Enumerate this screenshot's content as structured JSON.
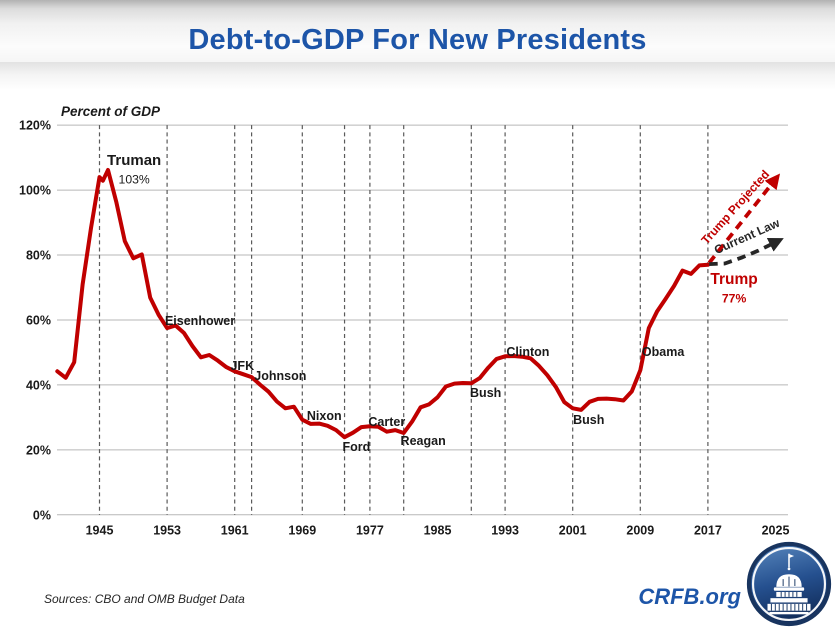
{
  "title": "Debt-to-GDP For New Presidents",
  "footer": {
    "sources": "Sources: CBO and OMB Budget Data",
    "brand": "CRFB.org"
  },
  "colors": {
    "accent_blue": "#1d55a8",
    "line_red": "#c00000",
    "projection_black": "#262626",
    "gridline": "#b7b7b7",
    "inauguration_dash": "#5a5a5a"
  },
  "chart_data": {
    "type": "line",
    "title": "Debt-to-GDP For New Presidents",
    "axis_note": "Percent of GDP",
    "xlabel": "",
    "ylabel": "Percent of GDP",
    "ylim": [
      0,
      120
    ],
    "xlim": [
      1940,
      2026.5
    ],
    "grid": "horizontal solid; vertical dashed at first-inauguration years",
    "legend_position": "none",
    "y_tick_labels": [
      "0%",
      "20%",
      "40%",
      "60%",
      "80%",
      "100%",
      "120%"
    ],
    "x_tick_years": [
      1945,
      1953,
      1961,
      1969,
      1977,
      1985,
      1993,
      2001,
      2009,
      2017,
      2025
    ],
    "inauguration_years": [
      1945,
      1953,
      1961,
      1963,
      1969,
      1974,
      1977,
      1981,
      1989,
      1993,
      2001,
      2009,
      2017
    ],
    "series": [
      {
        "name": "Debt-to-GDP (historical)",
        "color": "#c00000",
        "points": [
          [
            1940,
            44.2
          ],
          [
            1941,
            42.2
          ],
          [
            1942,
            47.0
          ],
          [
            1943,
            70.9
          ],
          [
            1944,
            88.3
          ],
          [
            1945,
            104.0
          ],
          [
            1945.4,
            102.9
          ],
          [
            1946,
            106.2
          ],
          [
            1947,
            96.2
          ],
          [
            1948,
            84.3
          ],
          [
            1949,
            79.0
          ],
          [
            1950,
            80.2
          ],
          [
            1951,
            66.9
          ],
          [
            1952,
            61.6
          ],
          [
            1953,
            57.5
          ],
          [
            1954,
            58.3
          ],
          [
            1955,
            56.0
          ],
          [
            1956,
            52.0
          ],
          [
            1957,
            48.5
          ],
          [
            1958,
            49.2
          ],
          [
            1959,
            47.5
          ],
          [
            1960,
            45.5
          ],
          [
            1961,
            44.2
          ],
          [
            1962,
            43.3
          ],
          [
            1963,
            42.4
          ],
          [
            1964,
            40.1
          ],
          [
            1965,
            37.9
          ],
          [
            1966,
            34.9
          ],
          [
            1967,
            32.8
          ],
          [
            1968,
            33.3
          ],
          [
            1969,
            29.3
          ],
          [
            1970,
            28.0
          ],
          [
            1971,
            28.1
          ],
          [
            1972,
            27.4
          ],
          [
            1973,
            26.1
          ],
          [
            1974,
            23.9
          ],
          [
            1975,
            25.3
          ],
          [
            1976,
            27.0
          ],
          [
            1977,
            27.3
          ],
          [
            1978,
            27.1
          ],
          [
            1979,
            25.6
          ],
          [
            1980,
            26.1
          ],
          [
            1981,
            25.2
          ],
          [
            1982,
            28.7
          ],
          [
            1983,
            33.1
          ],
          [
            1984,
            34.0
          ],
          [
            1985,
            36.2
          ],
          [
            1986,
            39.5
          ],
          [
            1987,
            40.4
          ],
          [
            1988,
            40.6
          ],
          [
            1989,
            40.5
          ],
          [
            1990,
            42.1
          ],
          [
            1991,
            45.3
          ],
          [
            1992,
            48.0
          ],
          [
            1993,
            48.8
          ],
          [
            1994,
            48.9
          ],
          [
            1995,
            48.7
          ],
          [
            1996,
            48.2
          ],
          [
            1997,
            45.9
          ],
          [
            1998,
            43.0
          ],
          [
            1999,
            39.4
          ],
          [
            2000,
            34.7
          ],
          [
            2001,
            32.8
          ],
          [
            2002,
            32.3
          ],
          [
            2003,
            34.8
          ],
          [
            2004,
            35.7
          ],
          [
            2005,
            35.8
          ],
          [
            2006,
            35.6
          ],
          [
            2007,
            35.2
          ],
          [
            2008,
            38.0
          ],
          [
            2009,
            44.5
          ],
          [
            2010,
            57.5
          ],
          [
            2011,
            62.7
          ],
          [
            2012,
            66.5
          ],
          [
            2013,
            70.5
          ],
          [
            2014,
            75.2
          ],
          [
            2015,
            74.2
          ],
          [
            2016,
            76.8
          ],
          [
            2017,
            77.0
          ]
        ]
      }
    ],
    "projections": [
      {
        "name": "Trump Projected",
        "color": "#c00000",
        "style": "dashed-arrow",
        "points": [
          [
            2017.15,
            77.6
          ],
          [
            2025.2,
            104.0
          ]
        ],
        "label": {
          "text": "Trump Projected",
          "year": 2020.6,
          "pct": 93.9,
          "angle": -48
        }
      },
      {
        "name": "Current Law",
        "color": "#262626",
        "style": "dashed-arrow",
        "points": [
          [
            2017.15,
            77.2
          ],
          [
            2019,
            77.4
          ],
          [
            2021,
            79.2
          ],
          [
            2023,
            81.4
          ],
          [
            2025.5,
            84.6
          ]
        ],
        "label": {
          "text": "Current Law",
          "year": 2021.8,
          "pct": 84.6,
          "angle": -24
        }
      }
    ],
    "president_labels": [
      {
        "label": "Truman",
        "year": 1949.1,
        "pct": 109.0,
        "size": 15,
        "value_label": "103%"
      },
      {
        "label": "Eisenhower",
        "year": 1956.9,
        "pct": 59.7
      },
      {
        "label": "JFK",
        "year": 1961.9,
        "pct": 45.8
      },
      {
        "label": "Johnson",
        "year": 1966.4,
        "pct": 42.7
      },
      {
        "label": "Nixon",
        "year": 1971.6,
        "pct": 30.4
      },
      {
        "label": "Ford",
        "year": 1975.4,
        "pct": 20.9
      },
      {
        "label": "Carter",
        "year": 1979.0,
        "pct": 28.6
      },
      {
        "label": "Reagan",
        "year": 1983.3,
        "pct": 22.7
      },
      {
        "label": "Bush",
        "year": 1990.7,
        "pct": 37.5
      },
      {
        "label": "Clinton",
        "year": 1995.7,
        "pct": 50.1
      },
      {
        "label": "Bush",
        "year": 2002.9,
        "pct": 29.2
      },
      {
        "label": "Obama",
        "year": 2011.7,
        "pct": 50.1
      },
      {
        "label": "Trump",
        "year": 2020.1,
        "pct": 72.3,
        "size": 15.5,
        "color": "#c00000",
        "value_label": "77%"
      }
    ]
  }
}
